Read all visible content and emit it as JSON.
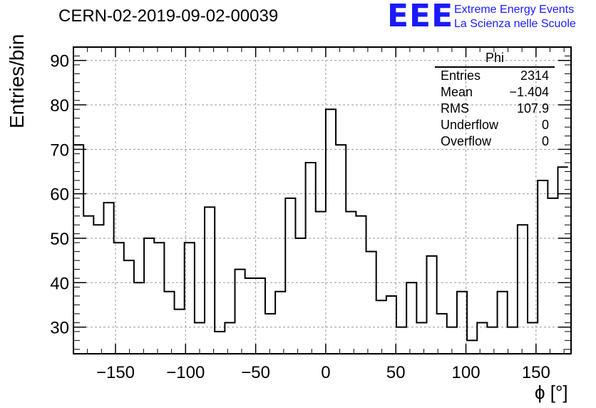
{
  "header": {
    "run_title": "CERN-02-2019-09-02-00039",
    "logo_text": "EEE",
    "logo_line1": "Extreme Energy Events",
    "logo_line2": "La Scienza nelle Scuole"
  },
  "stats_box": {
    "title": "Phi",
    "rows": [
      {
        "label": "Entries",
        "value": "2314"
      },
      {
        "label": "Mean",
        "value": "−1.404"
      },
      {
        "label": "RMS",
        "value": "107.9"
      },
      {
        "label": "Underflow",
        "value": "0"
      },
      {
        "label": "Overflow",
        "value": "0"
      }
    ]
  },
  "colors": {
    "line": "#000000",
    "grid": "#999999",
    "logo": "#1a1aff"
  },
  "chart_data": {
    "type": "bar",
    "style": "step-histogram",
    "title": "CERN-02-2019-09-02-00039",
    "xlabel": "ϕ [°]",
    "ylabel": "Entries/bin",
    "xlim": [
      -180,
      175
    ],
    "ylim": [
      24,
      93
    ],
    "xticks": [
      -150,
      -100,
      -50,
      0,
      50,
      100,
      150
    ],
    "xtick_labels": [
      "−150",
      "−100",
      "−50",
      "0",
      "50",
      "100",
      "150"
    ],
    "yticks": [
      30,
      40,
      50,
      60,
      70,
      80,
      90
    ],
    "grid": true,
    "bin_width": 7.2,
    "bin_edges_start": -180,
    "values": [
      71,
      55,
      53,
      58,
      49,
      45,
      40,
      50,
      49,
      38,
      34,
      49,
      31,
      57,
      29,
      31,
      43,
      41,
      41,
      33,
      38,
      59,
      50,
      67,
      56,
      79,
      71,
      56,
      55,
      47,
      36,
      37,
      30,
      40,
      31,
      46,
      33,
      30,
      38,
      27,
      31,
      30,
      38,
      30,
      53,
      31,
      63,
      59,
      66
    ]
  }
}
